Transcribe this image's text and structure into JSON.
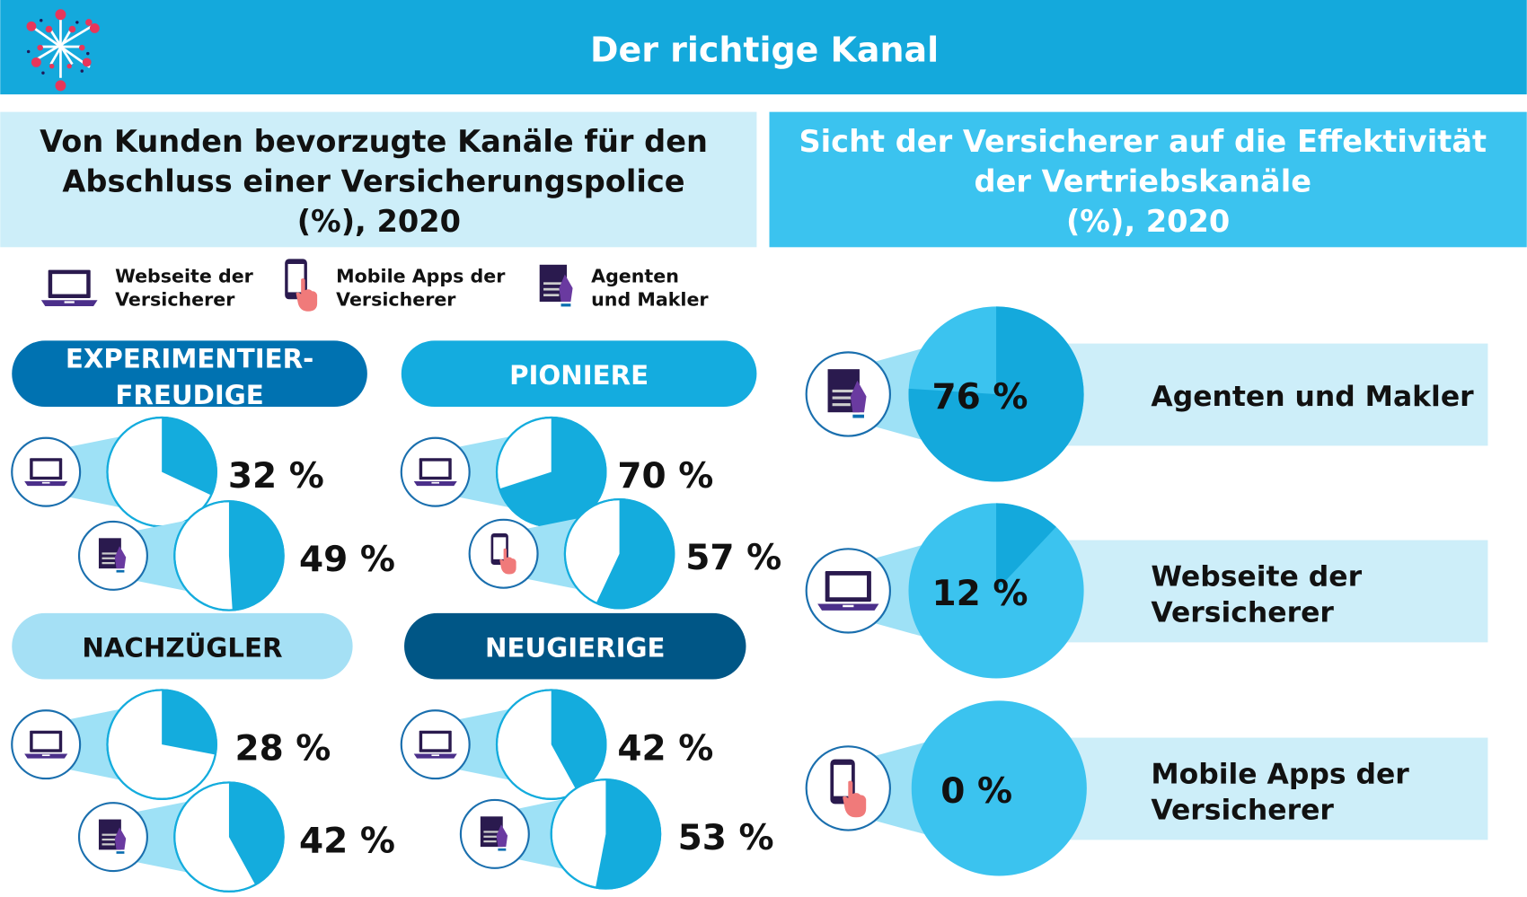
{
  "header": {
    "title": "Der richtige Kanal"
  },
  "left_panel": {
    "title_lines": [
      "Von Kunden bevorzugte Kanäle für den",
      "Abschluss einer Versicherungspolice",
      "(%), 2020"
    ]
  },
  "right_panel": {
    "title_lines": [
      "Sicht der Versicherer auf die Effektivität",
      "der Vertriebskanäle",
      "(%), 2020"
    ]
  },
  "legend": [
    {
      "icon": "laptop-icon",
      "lines": [
        "Webseite der",
        "Versicherer"
      ]
    },
    {
      "icon": "phone-icon",
      "lines": [
        "Mobile Apps der",
        "Versicherer"
      ]
    },
    {
      "icon": "agent-document-icon",
      "lines": [
        "Agenten",
        "und Makler"
      ]
    }
  ],
  "colors": {
    "header": "#14a9dc",
    "slice": "#14acdd",
    "cone": "#9ee1f6",
    "right_pie": "#3bc3ef",
    "right_slice": "#14a9dc",
    "bar": "#cdeef9"
  },
  "chart_data": [
    {
      "type": "pie",
      "title_lines": [
        "EXPERIMENTIER-",
        "FREUDIGE"
      ],
      "pill_color": "#0072b1",
      "series": [
        {
          "channel": "Webseite der Versicherer",
          "icon": "laptop-icon",
          "value": 32,
          "label": "32 %"
        },
        {
          "channel": "Agenten und Makler",
          "icon": "agent-document-icon",
          "value": 49,
          "label": "49 %"
        }
      ]
    },
    {
      "type": "pie",
      "title_lines": [
        "PIONIERE"
      ],
      "pill_color": "#14acdf",
      "series": [
        {
          "channel": "Webseite der Versicherer",
          "icon": "laptop-icon",
          "value": 70,
          "label": "70 %"
        },
        {
          "channel": "Mobile Apps der Versicherer",
          "icon": "phone-icon",
          "value": 57,
          "label": "57 %"
        }
      ]
    },
    {
      "type": "pie",
      "title_lines": [
        "NACHZÜGLER"
      ],
      "pill_color": "#a5e0f5",
      "series": [
        {
          "channel": "Webseite der Versicherer",
          "icon": "laptop-icon",
          "value": 28,
          "label": "28 %"
        },
        {
          "channel": "Agenten und Makler",
          "icon": "agent-document-icon",
          "value": 42,
          "label": "42 %"
        }
      ]
    },
    {
      "type": "pie",
      "title_lines": [
        "NEUGIERIGE"
      ],
      "pill_color": "#005686",
      "series": [
        {
          "channel": "Webseite der Versicherer",
          "icon": "laptop-icon",
          "value": 42,
          "label": "42 %"
        },
        {
          "channel": "Agenten und Makler",
          "icon": "agent-document-icon",
          "value": 53,
          "label": "53 %"
        }
      ]
    },
    {
      "type": "pie",
      "title": "Sicht der Versicherer",
      "series": [
        {
          "channel_lines": [
            "Agenten und Makler"
          ],
          "icon": "agent-document-icon",
          "value": 76,
          "label": "76 %"
        },
        {
          "channel_lines": [
            "Webseite der",
            "Versicherer"
          ],
          "icon": "laptop-icon",
          "value": 12,
          "label": "12 %"
        },
        {
          "channel_lines": [
            "Mobile Apps der",
            "Versicherer"
          ],
          "icon": "phone-icon",
          "value": 0,
          "label": "0 %"
        }
      ]
    }
  ]
}
